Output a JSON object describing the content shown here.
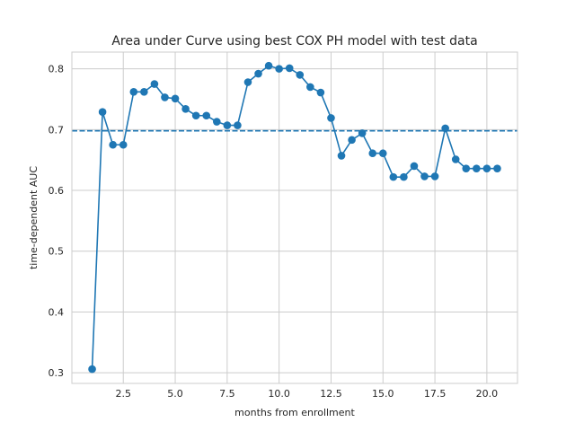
{
  "chart_data": {
    "type": "line",
    "title": "Area under Curve using best COX PH model with test data",
    "xlabel": "months from enrollment",
    "ylabel": "time-dependent AUC",
    "xlim": [
      0.025,
      21.475
    ],
    "ylim": [
      0.2825,
      0.8275
    ],
    "xticks": [
      2.5,
      5.0,
      7.5,
      10.0,
      12.5,
      15.0,
      17.5,
      20.0
    ],
    "xtick_labels": [
      "2.5",
      "5.0",
      "7.5",
      "10.0",
      "12.5",
      "15.0",
      "17.5",
      "20.0"
    ],
    "yticks": [
      0.3,
      0.4,
      0.5,
      0.6,
      0.7,
      0.8
    ],
    "ytick_labels": [
      "0.3",
      "0.4",
      "0.5",
      "0.6",
      "0.7",
      "0.8"
    ],
    "grid": true,
    "series": [
      {
        "color": "#1f77b4",
        "marker": "circle",
        "x": [
          1.0,
          1.5,
          2.0,
          2.5,
          3.0,
          3.5,
          4.0,
          4.5,
          5.0,
          5.5,
          6.0,
          6.5,
          7.0,
          7.5,
          8.0,
          8.5,
          9.0,
          9.5,
          10.0,
          10.5,
          11.0,
          11.5,
          12.0,
          12.5,
          13.0,
          13.5,
          14.0,
          14.5,
          15.0,
          15.5,
          16.0,
          16.5,
          17.0,
          17.5,
          18.0,
          18.5,
          19.0,
          19.5,
          20.0,
          20.5
        ],
        "values": [
          0.306,
          0.729,
          0.675,
          0.675,
          0.762,
          0.762,
          0.775,
          0.753,
          0.751,
          0.734,
          0.723,
          0.723,
          0.713,
          0.707,
          0.707,
          0.778,
          0.792,
          0.805,
          0.8,
          0.801,
          0.79,
          0.77,
          0.761,
          0.719,
          0.657,
          0.683,
          0.694,
          0.661,
          0.661,
          0.622,
          0.622,
          0.64,
          0.623,
          0.623,
          0.702,
          0.651,
          0.636,
          0.636,
          0.636,
          0.636
        ]
      }
    ],
    "reference_line": {
      "y": 0.698,
      "style": "dashed",
      "color": "#1f77b4"
    }
  }
}
